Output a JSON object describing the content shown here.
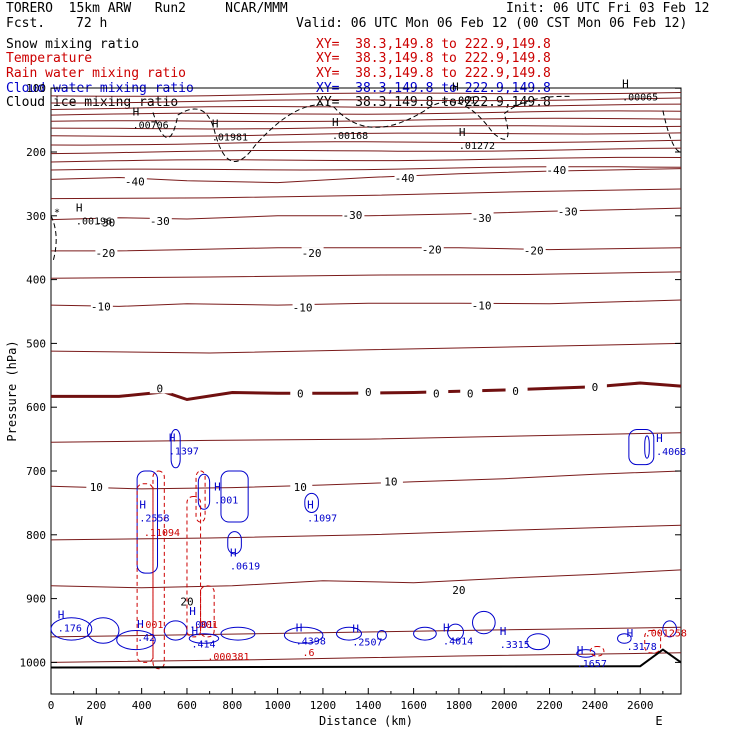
{
  "header": {
    "model_line": "TORERO  15km ARW   Run2     NCAR/MMM",
    "init_line": "Init: 06 UTC Fri 03 Feb 12",
    "fcst_label": "Fcst.",
    "fcst_value": "72 h",
    "valid_line": "Valid: 06 UTC Mon 06 Feb 12 (00 CST Mon 06 Feb 12)",
    "fields": [
      {
        "name": "Snow mixing ratio",
        "xy": "XY=  38.3,149.8 to 222.9,149.8",
        "color": "#000000"
      },
      {
        "name": "Temperature",
        "xy": "XY=  38.3,149.8 to 222.9,149.8",
        "color": "#cc0000"
      },
      {
        "name": "Rain water mixing ratio",
        "xy": "XY=  38.3,149.8 to 222.9,149.8",
        "color": "#cc0000"
      },
      {
        "name": "Cloud water mixing ratio",
        "xy": "XY=  38.3,149.8 to 222.9,149.8",
        "color": "#0000cc"
      },
      {
        "name": "Cloud ice mixing ratio",
        "xy": "XY=  38.3,149.8 to 222.9,149.8",
        "color": "#000000"
      }
    ]
  },
  "chart_data": {
    "type": "cross-section",
    "xlabel": "Distance (km)",
    "ylabel": "Pressure (hPa)",
    "xlim": [
      0,
      2780
    ],
    "ylim": [
      1050,
      100
    ],
    "x_ticks": [
      0,
      200,
      400,
      600,
      800,
      1000,
      1200,
      1400,
      1600,
      1800,
      2000,
      2200,
      2400,
      2600
    ],
    "y_ticks": [
      100,
      200,
      300,
      400,
      500,
      600,
      700,
      800,
      900,
      1000
    ],
    "left_end_label": "W",
    "right_end_label": "E",
    "colors": {
      "temperature": "#7a1a1a",
      "zero_isotherm": "#701010",
      "cloud_water": "#0000cc",
      "rain": "#cc0000",
      "ice": "#000000",
      "terrain": "#000000"
    },
    "temperature_isotherms": [
      {
        "value": 20,
        "label": "20",
        "points": [
          [
            0,
            880
          ],
          [
            400,
            883
          ],
          [
            800,
            880
          ],
          [
            1200,
            872
          ],
          [
            1600,
            875
          ],
          [
            2000,
            868
          ],
          [
            2400,
            862
          ],
          [
            2780,
            855
          ]
        ],
        "label_positions": [
          [
            600,
            906
          ],
          [
            1800,
            888
          ]
        ]
      },
      {
        "value": 10,
        "label": "10",
        "points": [
          [
            0,
            724
          ],
          [
            400,
            728
          ],
          [
            800,
            726
          ],
          [
            1200,
            722
          ],
          [
            1600,
            717
          ],
          [
            2000,
            712
          ],
          [
            2400,
            705
          ],
          [
            2780,
            700
          ]
        ],
        "label_positions": [
          [
            200,
            727
          ],
          [
            1100,
            727
          ],
          [
            1500,
            718
          ]
        ]
      },
      {
        "value": 0,
        "label": "0",
        "points": [
          [
            0,
            583
          ],
          [
            300,
            583
          ],
          [
            500,
            576
          ],
          [
            600,
            588
          ],
          [
            800,
            577
          ],
          [
            1000,
            578
          ],
          [
            1300,
            578
          ],
          [
            1600,
            577
          ],
          [
            2000,
            573
          ],
          [
            2400,
            568
          ],
          [
            2600,
            562
          ],
          [
            2780,
            567
          ]
        ],
        "label_positions": [
          [
            480,
            572
          ],
          [
            1100,
            580
          ],
          [
            1400,
            578
          ],
          [
            1700,
            580
          ],
          [
            1850,
            580
          ],
          [
            2050,
            576
          ],
          [
            2400,
            570
          ]
        ]
      },
      {
        "value": -10,
        "label": "-10",
        "points": [
          [
            0,
            440
          ],
          [
            300,
            442
          ],
          [
            600,
            438
          ],
          [
            1000,
            440
          ],
          [
            1400,
            437
          ],
          [
            1800,
            437
          ],
          [
            2200,
            438
          ],
          [
            2780,
            432
          ]
        ],
        "label_positions": [
          [
            220,
            444
          ],
          [
            1110,
            445
          ],
          [
            1900,
            442
          ]
        ]
      },
      {
        "value": -20,
        "label": "-20",
        "points": [
          [
            0,
            355
          ],
          [
            300,
            355
          ],
          [
            600,
            353
          ],
          [
            1000,
            350
          ],
          [
            1400,
            350
          ],
          [
            1800,
            350
          ],
          [
            2200,
            353
          ],
          [
            2780,
            350
          ]
        ],
        "label_positions": [
          [
            240,
            360
          ],
          [
            1150,
            360
          ],
          [
            1680,
            354
          ],
          [
            2130,
            356
          ]
        ]
      },
      {
        "value": -30,
        "label": "-30",
        "points": [
          [
            0,
            306
          ],
          [
            300,
            303
          ],
          [
            600,
            305
          ],
          [
            1000,
            300
          ],
          [
            1400,
            300
          ],
          [
            1800,
            297
          ],
          [
            2200,
            293
          ],
          [
            2780,
            288
          ]
        ],
        "label_positions": [
          [
            240,
            312
          ],
          [
            480,
            310
          ],
          [
            1330,
            300
          ],
          [
            1900,
            305
          ],
          [
            2280,
            295
          ]
        ]
      },
      {
        "value": -40,
        "label": "-40",
        "points": [
          [
            0,
            243
          ],
          [
            300,
            240
          ],
          [
            600,
            245
          ],
          [
            1000,
            248
          ],
          [
            1400,
            240
          ],
          [
            1800,
            234
          ],
          [
            2200,
            230
          ],
          [
            2780,
            226
          ]
        ],
        "label_positions": [
          [
            370,
            248
          ],
          [
            1560,
            242
          ],
          [
            2230,
            230
          ]
        ]
      }
    ],
    "upper_isotherm_levels_hPa": [
      112,
      122,
      132,
      142,
      153,
      164,
      175,
      188,
      201,
      215,
      229
    ],
    "snow_maxima": [
      {
        "x": 360,
        "p": 157,
        "value": ".00706"
      },
      {
        "x": 710,
        "p": 176,
        "value": ".01981"
      },
      {
        "x": 1240,
        "p": 173,
        "value": ".00168"
      },
      {
        "x": 1800,
        "p": 189,
        "value": ".01272"
      },
      {
        "x": 110,
        "p": 307,
        "value": ".00196"
      },
      {
        "x": 2520,
        "p": 113,
        "value": ".00065"
      },
      {
        "x": 1770,
        "p": 118,
        "value": ".001"
      }
    ],
    "cloud_water_maxima": [
      {
        "x": 390,
        "p": 773,
        "value": ".2558"
      },
      {
        "x": 520,
        "p": 668,
        "value": ".1397"
      },
      {
        "x": 720,
        "p": 745,
        "value": ".001"
      },
      {
        "x": 1130,
        "p": 773,
        "value": ".1097"
      },
      {
        "x": 790,
        "p": 848,
        "value": ".0619"
      },
      {
        "x": 2670,
        "p": 669,
        "value": ".4068"
      },
      {
        "x": 380,
        "p": 960,
        "value": ".42"
      },
      {
        "x": 610,
        "p": 940,
        "value": ".001"
      },
      {
        "x": 620,
        "p": 970,
        "value": ".414"
      },
      {
        "x": 1080,
        "p": 966,
        "value": ".4398"
      },
      {
        "x": 1330,
        "p": 967,
        "value": ".2507"
      },
      {
        "x": 1730,
        "p": 966,
        "value": ".4014"
      },
      {
        "x": 1980,
        "p": 971,
        "value": ".3315"
      },
      {
        "x": 2320,
        "p": 1001,
        "value": ".1657"
      },
      {
        "x": 2540,
        "p": 974,
        "value": ".3178"
      },
      {
        "x": 30,
        "p": 945,
        "value": ".176"
      }
    ],
    "rain_maxima": [
      {
        "x": 410,
        "p": 796,
        "value": ".11094"
      },
      {
        "x": 690,
        "p": 990,
        "value": ".000381"
      },
      {
        "x": 2620,
        "p": 953,
        "value": ".001258"
      },
      {
        "x": 1110,
        "p": 984,
        "value": ".6"
      },
      {
        "x": 390,
        "p": 940,
        "value": ".001"
      },
      {
        "x": 630,
        "p": 940,
        "value": ".001"
      }
    ],
    "ice_label_top": ".001"
  }
}
